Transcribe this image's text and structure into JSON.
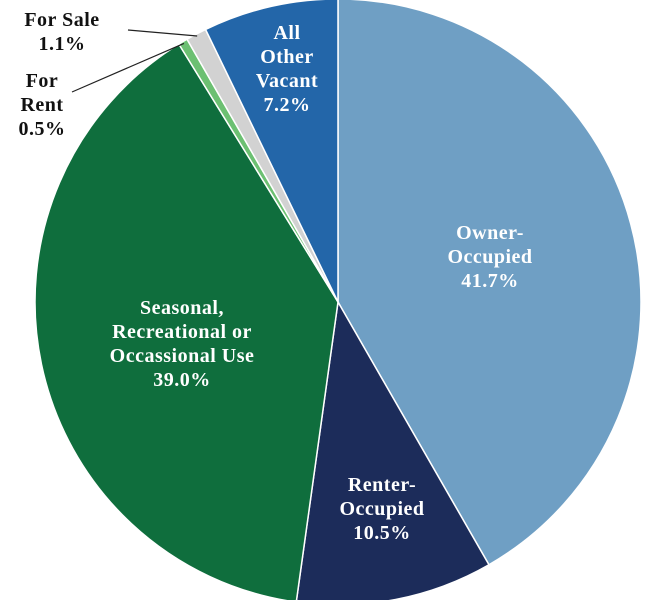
{
  "chart_data": {
    "type": "pie",
    "categories": [
      [
        "Owner-",
        "Occupied"
      ],
      [
        "Renter-",
        "Occupied"
      ],
      [
        "Seasonal,",
        "Recreational or",
        "Occassional Use"
      ],
      [
        "For",
        "Rent"
      ],
      [
        "For Sale"
      ],
      [
        "All",
        "Other",
        "Vacant"
      ]
    ],
    "values": [
      41.7,
      10.5,
      39.0,
      0.5,
      1.1,
      7.2
    ],
    "value_labels": [
      "41.7%",
      "10.5%",
      "39.0%",
      "0.5%",
      "1.1%",
      "7.2%"
    ],
    "colors": [
      "#6f9fc4",
      "#1c2c5a",
      "#0f6e3d",
      "#6cc072",
      "#d2d2d2",
      "#2366a9"
    ]
  }
}
